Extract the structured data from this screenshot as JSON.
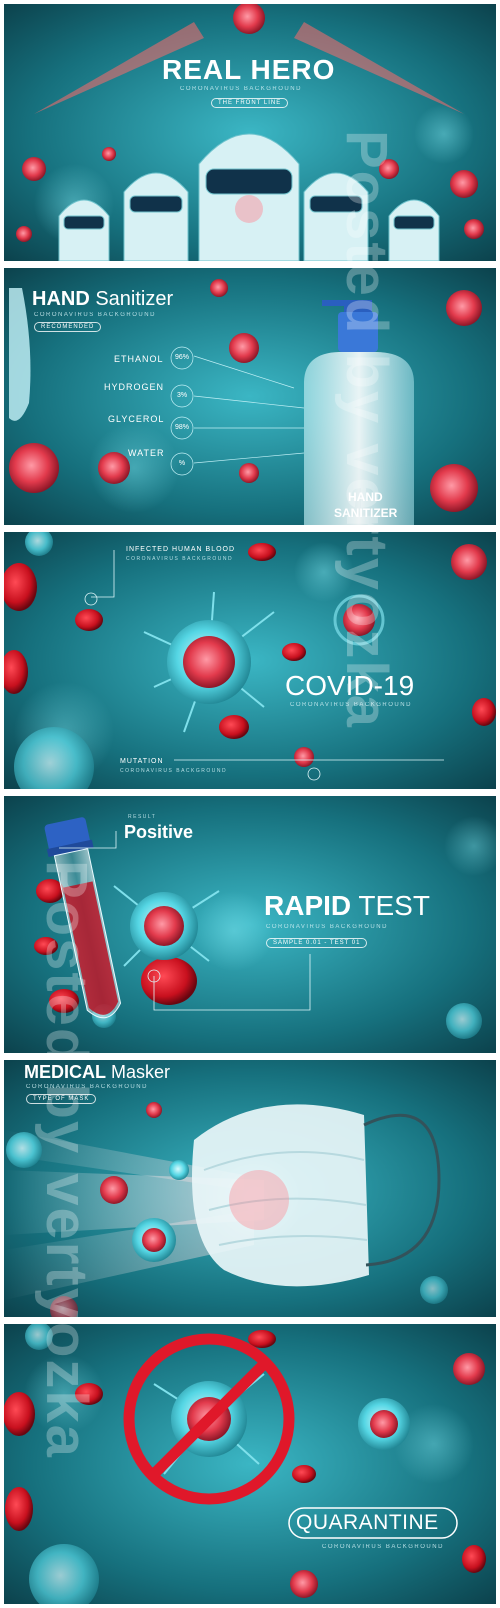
{
  "panels": [
    {
      "title_bold": "REAL HERO",
      "subtitle": "CORONAVIRUS BACKGROUND",
      "tag": "THE FRONT LINE"
    },
    {
      "title_bold": "HAND",
      "title_light": "Sanitizer",
      "subtitle": "CORONAVIRUS BACKGROUND",
      "tag": "RECOMENDED",
      "ingredients": [
        {
          "name": "ETHANOL",
          "value": "96%"
        },
        {
          "name": "HYDROGEN",
          "value": "3%"
        },
        {
          "name": "GLYCEROL",
          "value": "98%"
        },
        {
          "name": "WATER",
          "value": "%"
        }
      ],
      "bottle_label_line1": "HAND",
      "bottle_label_line2": "SANITIZER"
    },
    {
      "title": "COVID-19",
      "subtitle": "CORONAVIRUS BACKGROUND",
      "label_top": "INFECTED HUMAN BLOOD",
      "label_top_sub": "CORONAVIRUS BACKGROUND",
      "label_bottom": "MUTATION",
      "label_bottom_sub": "CORONAVIRUS BACKGROUND"
    },
    {
      "result_small": "RESULT",
      "result": "Positive",
      "title_bold": "RAPID",
      "title_light": "TEST",
      "subtitle": "CORONAVIRUS BACKGROUND",
      "sample": "SAMPLE 0.01 - TEST 01"
    },
    {
      "title_bold": "MEDICAL",
      "title_light": "Masker",
      "subtitle": "CORONAVIRUS BACKGROUND",
      "tag": "TYPE OF MASK"
    },
    {
      "title": "QUARANTINE",
      "subtitle": "CORONAVIRUS BACKGROUND"
    }
  ],
  "watermark": "Posted by vertyozka",
  "colors": {
    "teal_dark": "#0b3c46",
    "teal": "#1b7f8c",
    "cyan": "#4fd3e0",
    "virus_red": "#d8283a",
    "blood_red": "#c8101e"
  }
}
